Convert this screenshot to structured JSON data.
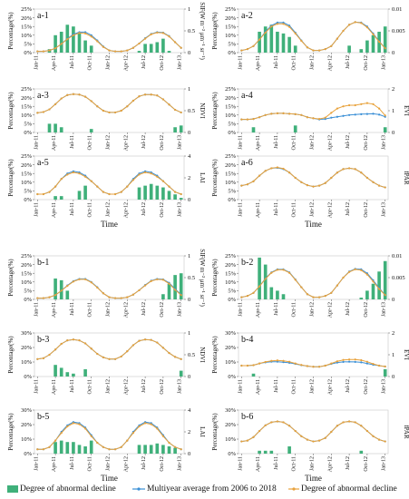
{
  "figure": {
    "xlabel": "Time",
    "ylabel_left": "Percentage(%)",
    "month_ticks": [
      "Jan-11",
      "Apr-11",
      "Jul-11",
      "Oct-11",
      "Jan-12",
      "Apr-12",
      "Jul-12",
      "Oct-12",
      "Jan-13"
    ],
    "colors": {
      "bar": "#3fb07a",
      "multiyear": "#3a8fd6",
      "abnormal_line": "#e8a23c"
    }
  },
  "legend": {
    "bar_label": "Degree of abnormal decline",
    "multiyear_label": "Multiyear average from 2006 to 2018",
    "abnormal_label": "Degree of abnormal decline"
  },
  "chart_data": [
    {
      "panel": "a-1",
      "type": "bar+line",
      "ylabel_right": "SIF(W m⁻² μm⁻¹ sr⁻¹)",
      "ylim_left": [
        0,
        25
      ],
      "yticks_left": [
        "0%",
        "5%",
        "10%",
        "15%",
        "20%",
        "25%"
      ],
      "ylim_right": [
        0,
        1
      ],
      "yticks_right": [
        "0",
        "0.5",
        "1"
      ],
      "bars": [
        0,
        0,
        2,
        10,
        12,
        16,
        15,
        11,
        7,
        4,
        0,
        0,
        0,
        0,
        0,
        0,
        0,
        1,
        5,
        5,
        6,
        8,
        1,
        0,
        0
      ],
      "multiyear": [
        0.03,
        0.03,
        0.05,
        0.1,
        0.2,
        0.32,
        0.42,
        0.47,
        0.47,
        0.4,
        0.28,
        0.14,
        0.05,
        0.03,
        0.03,
        0.05,
        0.11,
        0.21,
        0.33,
        0.43,
        0.47,
        0.46,
        0.38,
        0.24,
        0.11
      ],
      "abnormal": [
        0.03,
        0.03,
        0.05,
        0.1,
        0.2,
        0.31,
        0.4,
        0.45,
        0.44,
        0.37,
        0.26,
        0.13,
        0.05,
        0.03,
        0.03,
        0.05,
        0.11,
        0.21,
        0.32,
        0.42,
        0.46,
        0.45,
        0.37,
        0.24,
        0.11
      ]
    },
    {
      "panel": "a-2",
      "type": "bar+line",
      "ylabel_right": "SIFyield",
      "ylim_left": [
        0,
        25
      ],
      "yticks_left": [
        "0%",
        "5%",
        "10%",
        "15%",
        "20%",
        "25%"
      ],
      "ylim_right": [
        0,
        0.01
      ],
      "yticks_right": [
        "0",
        "0.005",
        "0.01"
      ],
      "bars": [
        0,
        0,
        0,
        12,
        15,
        16,
        12,
        11,
        9,
        4,
        0,
        0,
        0,
        0,
        0,
        0,
        0,
        0,
        4,
        0,
        2,
        7,
        10,
        12,
        15
      ],
      "multiyear": [
        0.0005,
        0.0008,
        0.0015,
        0.003,
        0.0048,
        0.0062,
        0.0069,
        0.0069,
        0.0062,
        0.0046,
        0.0028,
        0.0012,
        0.0005,
        0.0005,
        0.0008,
        0.0015,
        0.0032,
        0.005,
        0.0064,
        0.007,
        0.0069,
        0.006,
        0.0044,
        0.0026,
        0.001
      ],
      "abnormal": [
        0.0005,
        0.0008,
        0.0015,
        0.003,
        0.0046,
        0.006,
        0.0066,
        0.0066,
        0.0059,
        0.0044,
        0.0027,
        0.0012,
        0.0005,
        0.0005,
        0.0008,
        0.0015,
        0.0032,
        0.005,
        0.0064,
        0.007,
        0.0068,
        0.0058,
        0.0042,
        0.0025,
        0.001
      ]
    },
    {
      "panel": "a-3",
      "type": "bar+line",
      "ylabel_right": "NDVI",
      "ylim_left": [
        0,
        25
      ],
      "yticks_left": [
        "0%",
        "5%",
        "10%",
        "15%",
        "20%",
        "25%"
      ],
      "ylim_right": [
        0,
        1
      ],
      "yticks_right": [
        "0",
        "0.5",
        "1"
      ],
      "bars": [
        0,
        0,
        5,
        5,
        3,
        0,
        0,
        0,
        0,
        2,
        0,
        0,
        0,
        0,
        0,
        0,
        0,
        0,
        0,
        0,
        0,
        0,
        0,
        3,
        4
      ],
      "multiyear": [
        0.45,
        0.47,
        0.53,
        0.65,
        0.78,
        0.86,
        0.88,
        0.87,
        0.82,
        0.72,
        0.6,
        0.5,
        0.46,
        0.46,
        0.5,
        0.6,
        0.73,
        0.83,
        0.87,
        0.87,
        0.85,
        0.76,
        0.64,
        0.52,
        0.46
      ],
      "abnormal": [
        0.45,
        0.47,
        0.53,
        0.65,
        0.78,
        0.86,
        0.88,
        0.87,
        0.82,
        0.72,
        0.6,
        0.5,
        0.46,
        0.46,
        0.5,
        0.6,
        0.73,
        0.83,
        0.87,
        0.87,
        0.85,
        0.76,
        0.64,
        0.52,
        0.46
      ]
    },
    {
      "panel": "a-4",
      "type": "bar+line",
      "ylabel_right": "EVI",
      "ylim_left": [
        0,
        25
      ],
      "yticks_left": [
        "0%",
        "5%",
        "10%",
        "15%",
        "20%",
        "25%"
      ],
      "ylim_right": [
        0,
        2
      ],
      "yticks_right": [
        "0",
        "1",
        "2"
      ],
      "bars": [
        0,
        0,
        3,
        0,
        0,
        0,
        0,
        0,
        0,
        4,
        0,
        0,
        0,
        0,
        0,
        0,
        0,
        0,
        0,
        0,
        0,
        0,
        0,
        0,
        3
      ],
      "multiyear": [
        0.6,
        0.6,
        0.62,
        0.7,
        0.8,
        0.86,
        0.88,
        0.88,
        0.86,
        0.84,
        0.8,
        0.7,
        0.65,
        0.6,
        0.62,
        0.68,
        0.72,
        0.76,
        0.8,
        0.82,
        0.84,
        0.85,
        0.86,
        0.82,
        0.72
      ],
      "abnormal": [
        0.6,
        0.6,
        0.62,
        0.7,
        0.8,
        0.86,
        0.88,
        0.88,
        0.86,
        0.84,
        0.8,
        0.7,
        0.65,
        0.62,
        0.68,
        0.9,
        1.1,
        1.2,
        1.25,
        1.25,
        1.3,
        1.35,
        1.3,
        1.1,
        0.78
      ]
    },
    {
      "panel": "a-5",
      "type": "bar+line",
      "ylabel_right": "LAI",
      "ylim_left": [
        0,
        25
      ],
      "yticks_left": [
        "0%",
        "5%",
        "10%",
        "15%",
        "20%",
        "25%"
      ],
      "ylim_right": [
        0,
        4
      ],
      "yticks_right": [
        "0",
        "2",
        "4"
      ],
      "bars": [
        0,
        0,
        0,
        2,
        2,
        0,
        0,
        5,
        8,
        0,
        0,
        0,
        0,
        0,
        0,
        0,
        0,
        7,
        8,
        9,
        8,
        7,
        5,
        3,
        1
      ],
      "multiyear": [
        0.5,
        0.5,
        0.7,
        1.2,
        1.9,
        2.4,
        2.6,
        2.5,
        2.2,
        1.7,
        1.2,
        0.7,
        0.5,
        0.5,
        0.7,
        1.2,
        1.9,
        2.4,
        2.6,
        2.5,
        2.2,
        1.7,
        1.2,
        0.7,
        0.5
      ],
      "abnormal": [
        0.5,
        0.5,
        0.7,
        1.2,
        1.9,
        2.3,
        2.5,
        2.4,
        2.1,
        1.7,
        1.2,
        0.7,
        0.5,
        0.5,
        0.7,
        1.2,
        1.8,
        2.3,
        2.5,
        2.4,
        2.1,
        1.7,
        1.2,
        0.7,
        0.5
      ]
    },
    {
      "panel": "a-6",
      "type": "bar+line",
      "ylabel_right": "fPAR",
      "ylim_left": [
        0,
        25
      ],
      "yticks_left": [
        "0%",
        "5%",
        "10%",
        "15%",
        "20%",
        "25%"
      ],
      "ylim_right": [
        0,
        1
      ],
      "yticks_right": [],
      "bars": [
        0,
        0,
        0,
        0,
        0,
        0,
        0,
        0,
        0,
        0,
        0,
        0,
        0,
        0,
        0,
        0,
        0,
        0,
        0,
        0,
        0,
        0,
        0,
        0,
        0
      ],
      "multiyear": [
        0.32,
        0.35,
        0.42,
        0.55,
        0.66,
        0.72,
        0.73,
        0.7,
        0.62,
        0.5,
        0.4,
        0.33,
        0.3,
        0.32,
        0.38,
        0.5,
        0.62,
        0.7,
        0.72,
        0.7,
        0.62,
        0.5,
        0.4,
        0.32,
        0.28
      ],
      "abnormal": [
        0.32,
        0.35,
        0.42,
        0.55,
        0.66,
        0.72,
        0.74,
        0.71,
        0.62,
        0.5,
        0.4,
        0.33,
        0.3,
        0.32,
        0.38,
        0.5,
        0.62,
        0.7,
        0.72,
        0.7,
        0.62,
        0.5,
        0.4,
        0.32,
        0.28
      ]
    },
    {
      "panel": "b-1",
      "type": "bar+line",
      "ylabel_right": "SIF(W m⁻² μm⁻¹ sr⁻¹)",
      "ylim_left": [
        0,
        25
      ],
      "yticks_left": [
        "0%",
        "5%",
        "10%",
        "15%",
        "20%",
        "25%"
      ],
      "ylim_right": [
        0,
        1
      ],
      "yticks_right": [
        "0",
        "0.5",
        "1"
      ],
      "bars": [
        0,
        0,
        0,
        12,
        11,
        5,
        0,
        0,
        0,
        0,
        0,
        0,
        0,
        0,
        0,
        0,
        0,
        0,
        0,
        0,
        0,
        3,
        9,
        14,
        15
      ],
      "multiyear": [
        0.03,
        0.03,
        0.05,
        0.1,
        0.2,
        0.32,
        0.42,
        0.47,
        0.47,
        0.4,
        0.28,
        0.14,
        0.05,
        0.03,
        0.03,
        0.05,
        0.11,
        0.21,
        0.33,
        0.43,
        0.47,
        0.46,
        0.38,
        0.24,
        0.11
      ],
      "abnormal": [
        0.03,
        0.03,
        0.05,
        0.1,
        0.2,
        0.31,
        0.41,
        0.46,
        0.46,
        0.39,
        0.27,
        0.14,
        0.05,
        0.03,
        0.03,
        0.05,
        0.11,
        0.21,
        0.32,
        0.42,
        0.46,
        0.45,
        0.36,
        0.22,
        0.1
      ]
    },
    {
      "panel": "b-2",
      "type": "bar+line",
      "ylabel_right": "SIFyield",
      "ylim_left": [
        0,
        25
      ],
      "yticks_left": [
        "0%",
        "5%",
        "10%",
        "15%",
        "20%",
        "25%"
      ],
      "ylim_right": [
        0,
        0.01
      ],
      "yticks_right": [
        "0",
        "0.005",
        "0.01"
      ],
      "bars": [
        0,
        0,
        0,
        24,
        20,
        7,
        5,
        3,
        0,
        0,
        0,
        0,
        0,
        0,
        0,
        0,
        0,
        0,
        0,
        0,
        1,
        5,
        9,
        16,
        22
      ],
      "multiyear": [
        0.0005,
        0.0008,
        0.0015,
        0.003,
        0.0048,
        0.0062,
        0.0069,
        0.0069,
        0.0062,
        0.0046,
        0.0028,
        0.0012,
        0.0005,
        0.0005,
        0.0008,
        0.0015,
        0.0032,
        0.005,
        0.0064,
        0.007,
        0.0069,
        0.006,
        0.0044,
        0.0026,
        0.001
      ],
      "abnormal": [
        0.0005,
        0.0008,
        0.0015,
        0.003,
        0.0047,
        0.0061,
        0.0068,
        0.0068,
        0.0061,
        0.0045,
        0.0028,
        0.0012,
        0.0005,
        0.0005,
        0.0008,
        0.0015,
        0.0032,
        0.005,
        0.0063,
        0.0069,
        0.0067,
        0.0057,
        0.0041,
        0.0024,
        0.001
      ]
    },
    {
      "panel": "b-3",
      "type": "bar+line",
      "ylabel_right": "NDVI",
      "ylim_left": [
        0,
        30
      ],
      "yticks_left": [
        "0%",
        "10%",
        "20%",
        "30%"
      ],
      "ylim_right": [
        0,
        1
      ],
      "yticks_right": [
        "0",
        "0.5",
        "1"
      ],
      "bars": [
        0,
        0,
        0,
        8,
        6,
        3,
        2,
        0,
        5,
        0,
        0,
        0,
        0,
        0,
        0,
        0,
        0,
        0,
        0,
        0,
        0,
        0,
        0,
        0,
        4
      ],
      "multiyear": [
        0.4,
        0.42,
        0.5,
        0.62,
        0.75,
        0.83,
        0.85,
        0.83,
        0.76,
        0.64,
        0.52,
        0.44,
        0.4,
        0.4,
        0.46,
        0.58,
        0.72,
        0.82,
        0.85,
        0.84,
        0.78,
        0.66,
        0.54,
        0.45,
        0.4
      ],
      "abnormal": [
        0.4,
        0.42,
        0.5,
        0.62,
        0.75,
        0.83,
        0.85,
        0.83,
        0.76,
        0.64,
        0.52,
        0.44,
        0.4,
        0.4,
        0.46,
        0.58,
        0.72,
        0.82,
        0.85,
        0.84,
        0.78,
        0.66,
        0.54,
        0.45,
        0.4
      ]
    },
    {
      "panel": "b-4",
      "type": "bar+line",
      "ylabel_right": "EVI",
      "ylim_left": [
        0,
        30
      ],
      "yticks_left": [
        "0%",
        "10%",
        "20%",
        "30%"
      ],
      "ylim_right": [
        0,
        2
      ],
      "yticks_right": [
        "0",
        "1",
        "2"
      ],
      "bars": [
        0,
        0,
        2,
        0,
        0,
        0,
        0,
        0,
        0,
        0,
        0,
        0,
        0,
        0,
        0,
        0,
        0,
        0,
        0,
        0,
        0,
        0,
        0,
        0,
        5
      ],
      "multiyear": [
        0.5,
        0.5,
        0.52,
        0.6,
        0.65,
        0.68,
        0.68,
        0.66,
        0.63,
        0.58,
        0.52,
        0.48,
        0.45,
        0.45,
        0.5,
        0.58,
        0.64,
        0.67,
        0.68,
        0.67,
        0.65,
        0.6,
        0.54,
        0.5,
        0.46
      ],
      "abnormal": [
        0.5,
        0.5,
        0.52,
        0.6,
        0.67,
        0.72,
        0.74,
        0.72,
        0.68,
        0.6,
        0.53,
        0.48,
        0.45,
        0.45,
        0.5,
        0.6,
        0.7,
        0.76,
        0.78,
        0.78,
        0.75,
        0.68,
        0.58,
        0.5,
        0.46
      ]
    },
    {
      "panel": "b-5",
      "type": "bar+line",
      "ylabel_right": "LAI",
      "ylim_left": [
        0,
        30
      ],
      "yticks_left": [
        "0%",
        "10%",
        "20%",
        "30%"
      ],
      "ylim_right": [
        0,
        4
      ],
      "yticks_right": [
        "0",
        "2",
        "4"
      ],
      "bars": [
        0,
        0,
        0,
        8,
        9,
        8,
        8,
        6,
        5,
        9,
        0,
        0,
        0,
        0,
        0,
        0,
        0,
        6,
        6,
        6,
        7,
        6,
        5,
        4,
        0
      ],
      "multiyear": [
        0.4,
        0.4,
        0.6,
        1.2,
        2.0,
        2.6,
        2.9,
        2.8,
        2.4,
        1.7,
        1.0,
        0.6,
        0.4,
        0.4,
        0.6,
        1.2,
        2.0,
        2.6,
        2.9,
        2.8,
        2.4,
        1.7,
        1.0,
        0.6,
        0.4
      ],
      "abnormal": [
        0.4,
        0.4,
        0.6,
        1.2,
        1.9,
        2.5,
        2.8,
        2.7,
        2.3,
        1.6,
        1.0,
        0.6,
        0.4,
        0.4,
        0.6,
        1.2,
        1.9,
        2.5,
        2.8,
        2.7,
        2.3,
        1.6,
        1.0,
        0.6,
        0.4
      ]
    },
    {
      "panel": "b-6",
      "type": "bar+line",
      "ylabel_right": "fPAR",
      "ylim_left": [
        0,
        30
      ],
      "yticks_left": [
        "0%",
        "10%",
        "20%",
        "30%"
      ],
      "ylim_right": [
        0,
        1
      ],
      "yticks_right": [],
      "bars": [
        0,
        0,
        0,
        2,
        2,
        2,
        0,
        0,
        5,
        0,
        0,
        0,
        0,
        0,
        0,
        0,
        0,
        0,
        0,
        0,
        2,
        0,
        0,
        0,
        0
      ],
      "multiyear": [
        0.28,
        0.3,
        0.38,
        0.52,
        0.65,
        0.72,
        0.74,
        0.72,
        0.64,
        0.52,
        0.4,
        0.32,
        0.28,
        0.3,
        0.36,
        0.5,
        0.64,
        0.72,
        0.74,
        0.72,
        0.64,
        0.52,
        0.4,
        0.32,
        0.28
      ],
      "abnormal": [
        0.28,
        0.3,
        0.38,
        0.52,
        0.65,
        0.72,
        0.74,
        0.72,
        0.64,
        0.52,
        0.4,
        0.32,
        0.28,
        0.3,
        0.36,
        0.5,
        0.64,
        0.72,
        0.74,
        0.72,
        0.64,
        0.52,
        0.4,
        0.32,
        0.28
      ]
    }
  ]
}
